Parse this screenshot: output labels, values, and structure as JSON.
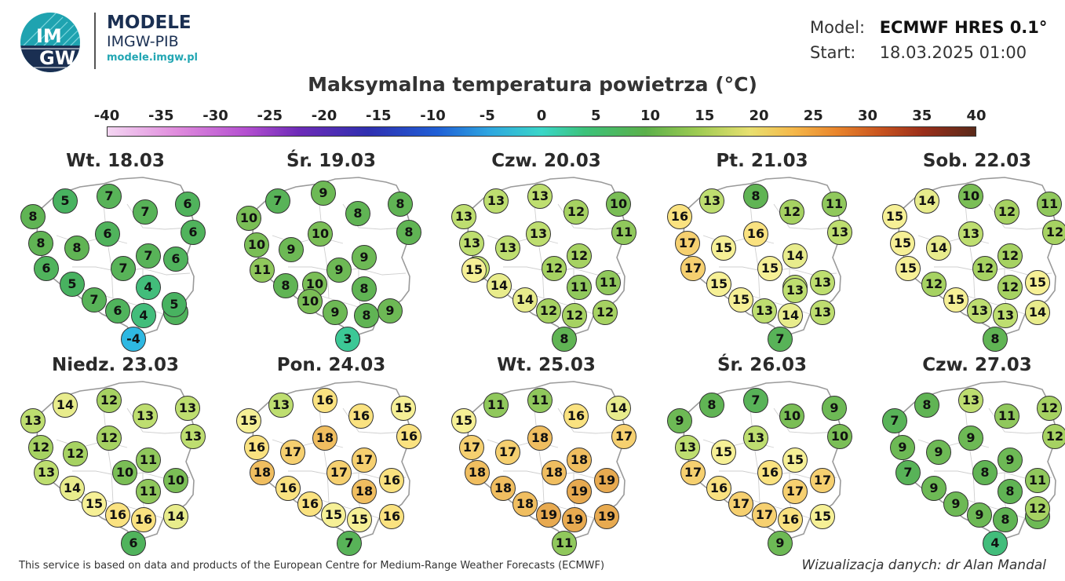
{
  "header": {
    "logo_text_top": "IM",
    "logo_text_bottom": "GW",
    "org_title": "MODELE",
    "org_sub": "IMGW-PIB",
    "org_url": "modele.imgw.pl"
  },
  "model_info": {
    "model_label": "Model:",
    "model_value": "ECMWF HRES 0.1°",
    "start_label": "Start:",
    "start_value": "18.03.2025 01:00"
  },
  "title": "Maksymalna temperatura powietrza (°C)",
  "scale": {
    "labels": [
      "-40",
      "-35",
      "-30",
      "-25",
      "-20",
      "-15",
      "-10",
      "-5",
      "0",
      "5",
      "10",
      "15",
      "20",
      "25",
      "30",
      "35",
      "40"
    ],
    "min": -40,
    "max": 40
  },
  "panels": [
    {
      "title": "Wt. 18.03",
      "values": [
        "5",
        "7",
        "6",
        "8",
        "7",
        "6",
        "8",
        "8",
        "6",
        "7",
        "6",
        "7",
        "6",
        "5",
        "4",
        "7",
        "6",
        "6",
        "4",
        "5",
        "-4"
      ]
    },
    {
      "title": "Śr. 19.03",
      "values": [
        "7",
        "9",
        "8",
        "10",
        "8",
        "8",
        "10",
        "10",
        "9",
        "9",
        "11",
        "9",
        "10",
        "8",
        "8",
        "10",
        "9",
        "9",
        "8",
        "3"
      ]
    },
    {
      "title": "Czw. 20.03",
      "values": [
        "13",
        "13",
        "10",
        "13",
        "12",
        "11",
        "13",
        "13",
        "13",
        "12",
        "13",
        "15",
        "12",
        "14",
        "11",
        "11",
        "14",
        "12",
        "12",
        "12",
        "8"
      ]
    },
    {
      "title": "Pt. 21.03",
      "values": [
        "13",
        "8",
        "11",
        "16",
        "12",
        "13",
        "16",
        "17",
        "15",
        "14",
        "17",
        "15",
        "13",
        "13",
        "15",
        "15",
        "13",
        "14",
        "13",
        "13",
        "7"
      ]
    },
    {
      "title": "Sob. 22.03",
      "values": [
        "14",
        "10",
        "11",
        "15",
        "12",
        "12",
        "13",
        "15",
        "14",
        "12",
        "15",
        "12",
        "12",
        "15",
        "12",
        "15",
        "13",
        "13",
        "14",
        "8"
      ]
    },
    {
      "title": "Niedz. 23.03",
      "values": [
        "14",
        "12",
        "13",
        "13",
        "13",
        "13",
        "12",
        "12",
        "12",
        "11",
        "13",
        "10",
        "14",
        "11",
        "10",
        "15",
        "16",
        "16",
        "14",
        "6"
      ]
    },
    {
      "title": "Pon. 24.03",
      "values": [
        "13",
        "16",
        "15",
        "15",
        "16",
        "16",
        "16",
        "18",
        "17",
        "17",
        "18",
        "17",
        "16",
        "18",
        "16",
        "16",
        "15",
        "15",
        "16",
        "7"
      ]
    },
    {
      "title": "Wt. 25.03",
      "values": [
        "11",
        "11",
        "14",
        "15",
        "16",
        "17",
        "17",
        "17",
        "18",
        "18",
        "18",
        "18",
        "18",
        "19",
        "19",
        "18",
        "19",
        "19",
        "19",
        "11"
      ]
    },
    {
      "title": "Śr. 26.03",
      "values": [
        "8",
        "7",
        "9",
        "9",
        "10",
        "10",
        "13",
        "13",
        "15",
        "15",
        "17",
        "16",
        "16",
        "17",
        "17",
        "17",
        "17",
        "16",
        "15",
        "9"
      ]
    },
    {
      "title": "Czw. 27.03",
      "values": [
        "8",
        "13",
        "12",
        "7",
        "11",
        "12",
        "9",
        "9",
        "9",
        "9",
        "7",
        "8",
        "9",
        "8",
        "11",
        "9",
        "9",
        "8",
        "9",
        "12",
        "4"
      ]
    }
  ],
  "colors": {
    "dot_border": "#333333",
    "map_fill": "#ffffff",
    "map_stroke": "#9a9a9a"
  },
  "footer": {
    "left": "This service is based on data and products of the European Centre for Medium-Range Weather Forecasts (ECMWF)",
    "right": "Wizualizacja danych: dr Alan Mandal"
  }
}
